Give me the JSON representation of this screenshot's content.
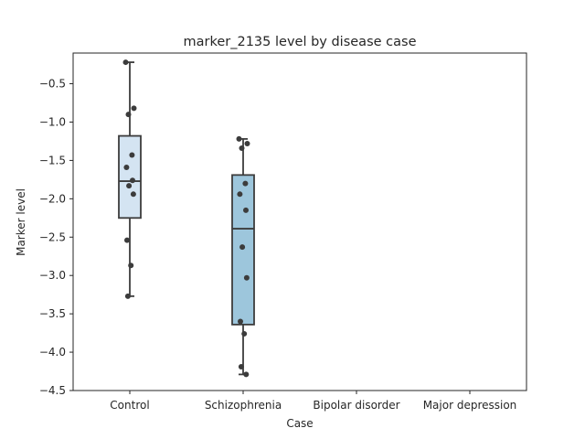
{
  "chart_data": {
    "type": "box",
    "title": "marker_2135 level by disease case",
    "xlabel": "Case",
    "ylabel": "Marker level",
    "categories": [
      "Control",
      "Schizophrenia",
      "Bipolar disorder",
      "Major depression"
    ],
    "ylim": [
      -4.5,
      -0.1
    ],
    "yticks": [
      -0.5,
      -1.0,
      -1.5,
      -2.0,
      -2.5,
      -3.0,
      -3.5,
      -4.0,
      -4.5
    ],
    "ytick_labels": [
      "−0.5",
      "−1.0",
      "−1.5",
      "−2.0",
      "−2.5",
      "−3.0",
      "−3.5",
      "−4.0",
      "−4.5"
    ],
    "grid": false,
    "colors": {
      "Control": "#d4e4f2",
      "Schizophrenia": "#9dc6dc",
      "edge": "#3c3c3c",
      "point": "#3c3c3c"
    },
    "boxes": [
      {
        "category": "Control",
        "q1": -2.25,
        "median": -1.77,
        "q3": -1.18,
        "whisker_low": -3.27,
        "whisker_high": -0.22,
        "points": [
          -0.22,
          -0.82,
          -0.9,
          -1.43,
          -1.59,
          -1.76,
          -1.83,
          -1.94,
          -2.54,
          -2.87,
          -3.27
        ]
      },
      {
        "category": "Schizophrenia",
        "q1": -3.64,
        "median": -2.39,
        "q3": -1.69,
        "whisker_low": -4.29,
        "whisker_high": -1.22,
        "points": [
          -1.22,
          -1.28,
          -1.34,
          -1.8,
          -1.94,
          -2.15,
          -2.63,
          -3.03,
          -3.6,
          -3.76,
          -4.19,
          -4.29
        ]
      }
    ]
  }
}
